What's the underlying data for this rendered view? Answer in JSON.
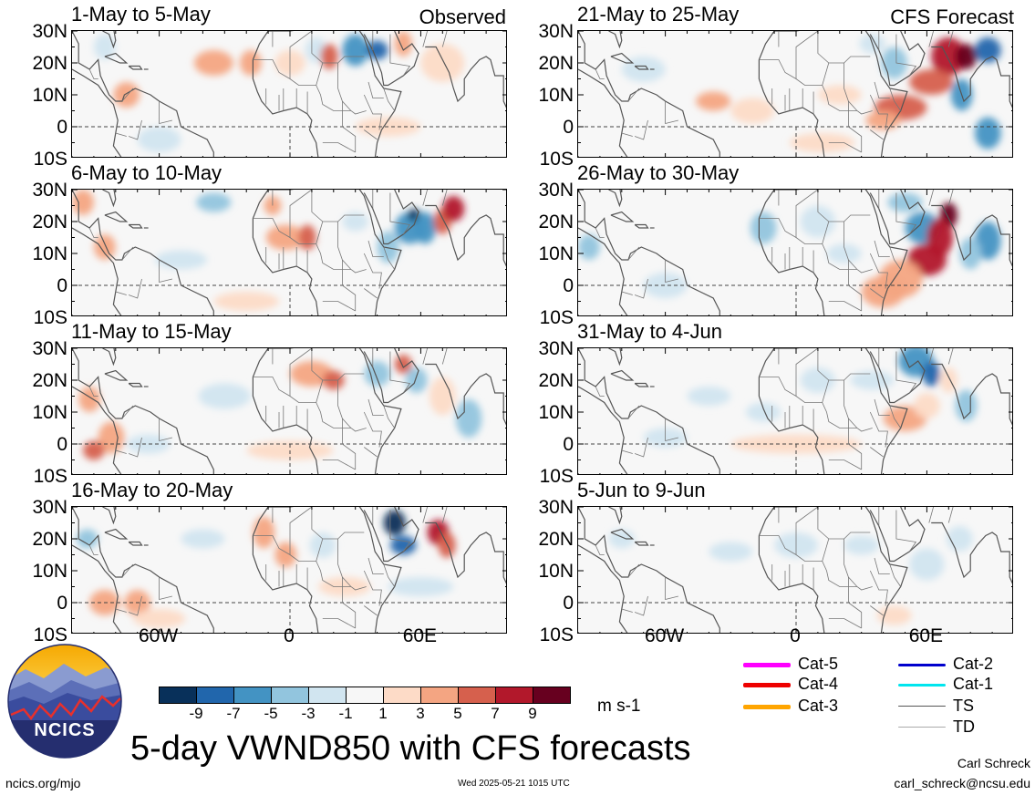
{
  "header": {
    "observed_tag": "Observed",
    "forecast_tag": "CFS Forecast"
  },
  "chart_data": {
    "type": "heatmap",
    "variable": "5-day VWND850",
    "units": "m s-1",
    "lat_ticks": [
      "30N",
      "20N",
      "10N",
      "0",
      "10S"
    ],
    "lon_ticks": [
      "60W",
      "0",
      "60E"
    ],
    "lat_range": [
      -10,
      30
    ],
    "lon_range": [
      -100,
      100
    ],
    "colorbar": {
      "ticks": [
        "-9",
        "-7",
        "-5",
        "-3",
        "-1",
        "1",
        "3",
        "5",
        "7",
        "9"
      ],
      "colors": [
        "#08305a",
        "#2166ac",
        "#4393c3",
        "#92c5de",
        "#d1e5f0",
        "#f7f7f7",
        "#fddbc7",
        "#f4a582",
        "#d6604d",
        "#b2182b",
        "#67001f"
      ]
    },
    "observed_panels": [
      {
        "title": "1-May to 5-May",
        "intensity": "moderate"
      },
      {
        "title": "6-May to 10-May",
        "intensity": "strong"
      },
      {
        "title": "11-May to 15-May",
        "intensity": "moderate"
      },
      {
        "title": "16-May to 20-May",
        "intensity": "strong"
      }
    ],
    "forecast_panels": [
      {
        "title": "21-May to 25-May",
        "intensity": "strong"
      },
      {
        "title": "26-May to 30-May",
        "intensity": "strong"
      },
      {
        "title": "31-May to 4-Jun",
        "intensity": "moderate"
      },
      {
        "title": "5-Jun to 9-Jun",
        "intensity": "weak"
      }
    ]
  },
  "storm_legend": [
    {
      "label": "Cat-5",
      "color": "#ff00ff",
      "weight": "thick"
    },
    {
      "label": "Cat-4",
      "color": "#ee0000",
      "weight": "thick"
    },
    {
      "label": "Cat-3",
      "color": "#ffa500",
      "weight": "thick"
    },
    {
      "label": "Cat-2",
      "color": "#0000cd",
      "weight": "medium"
    },
    {
      "label": "Cat-1",
      "color": "#00e5ee",
      "weight": "medium"
    },
    {
      "label": "TS",
      "color": "#555555",
      "weight": "thin"
    },
    {
      "label": "TD",
      "color": "#aaaaaa",
      "weight": "thin"
    }
  ],
  "footer": {
    "main_title": "5-day VWND850 with CFS forecasts",
    "logo_text": "NCICS",
    "url": "ncics.org/mjo",
    "timestamp": "Wed 2025-05-21 1015 UTC",
    "author": "Carl Schreck",
    "email": "carl_schreck@ncsu.edu"
  }
}
